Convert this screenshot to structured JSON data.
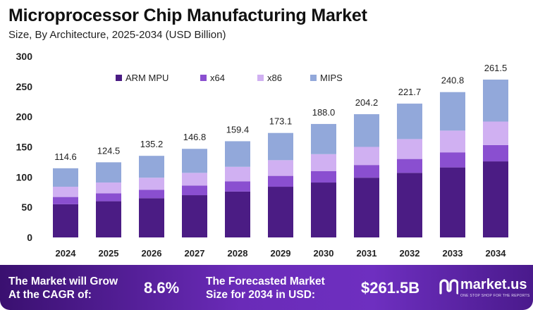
{
  "header": {
    "title": "Microprocessor Chip Manufacturing Market",
    "subtitle": "Size, By Architecture, 2025-2034 (USD Billion)"
  },
  "chart_data": {
    "type": "bar",
    "stacked": true,
    "categories": [
      "2024",
      "2025",
      "2026",
      "2027",
      "2028",
      "2029",
      "2030",
      "2031",
      "2032",
      "2033",
      "2034"
    ],
    "series": [
      {
        "name": "ARM MPU",
        "color": "#4b1c84",
        "values": [
          55,
          60,
          65,
          70,
          76,
          84,
          91,
          99,
          107,
          116,
          126
        ]
      },
      {
        "name": "x64",
        "color": "#8a4fd0",
        "values": [
          12,
          13,
          14,
          16,
          17,
          18,
          19,
          21,
          23,
          25,
          27
        ]
      },
      {
        "name": "x86",
        "color": "#d0b0f2",
        "values": [
          17,
          18,
          20,
          21,
          24,
          26,
          28,
          30,
          33,
          36,
          39
        ]
      },
      {
        "name": "MIPS",
        "color": "#92a8da",
        "values": [
          30.6,
          33.5,
          36.2,
          39.8,
          42.4,
          45.1,
          50.0,
          54.2,
          58.7,
          63.8,
          69.5
        ]
      }
    ],
    "totals": [
      "114.6",
      "124.5",
      "135.2",
      "146.8",
      "159.4",
      "173.1",
      "188.0",
      "204.2",
      "221.7",
      "240.8",
      "261.5"
    ],
    "ylim": [
      0,
      300
    ],
    "yticks": [
      0,
      50,
      100,
      150,
      200,
      250,
      300
    ],
    "legend_position": "top",
    "grid": false
  },
  "footer": {
    "cagr_label_line1": "The Market will Grow",
    "cagr_label_line2": "At the CAGR of:",
    "cagr_value": "8.6%",
    "forecast_label_line1": "The Forecasted Market",
    "forecast_label_line2": "Size for 2034 in USD:",
    "forecast_value": "$261.5B",
    "brand_name": "market.us",
    "brand_tagline": "ONE STOP SHOP FOR THE REPORTS"
  }
}
